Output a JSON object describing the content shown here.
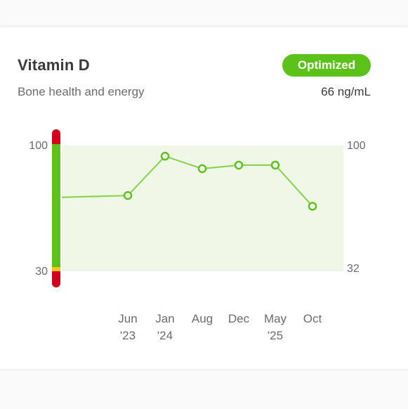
{
  "card": {
    "title": "Vitamin D",
    "subtitle": "Bone health and energy",
    "status_badge": "Optimized",
    "current_value": "66 ng/mL"
  },
  "colors": {
    "accent_green": "#5cc21a",
    "range_red": "#d0021b",
    "range_yellow": "#f5c518",
    "optimal_band": "#eff8e6",
    "line": "#86d34a"
  },
  "chart_data": {
    "type": "line",
    "left_axis_labels": [
      "100",
      "30"
    ],
    "right_axis_labels": [
      "100",
      "32"
    ],
    "ylim": [
      30,
      100
    ],
    "x_tick_labels": [
      [
        "Jun",
        "'23"
      ],
      [
        "Jan",
        "'24"
      ],
      [
        "Aug",
        ""
      ],
      [
        "Dec",
        ""
      ],
      [
        "May",
        "'25"
      ],
      [
        "Oct",
        ""
      ]
    ],
    "series": [
      {
        "values": [
          72,
          94,
          87,
          89,
          89,
          66
        ]
      }
    ],
    "line_start_value": 71,
    "optimal_range": [
      32,
      100
    ]
  }
}
